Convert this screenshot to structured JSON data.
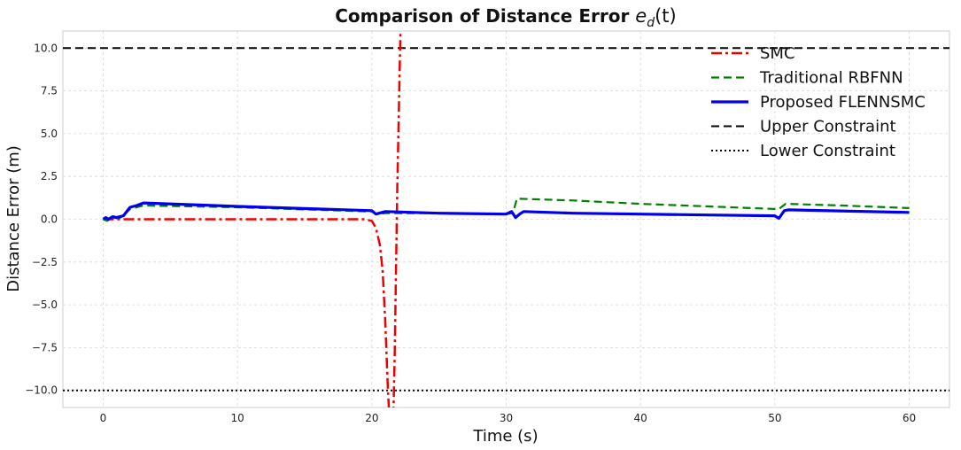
{
  "chart_data": {
    "type": "line",
    "title": "Comparison of Distance Error e_d(t)",
    "title_main": "Comparison of Distance Error ",
    "title_symbol": "e",
    "title_subscript": "d",
    "title_arg": "(t)",
    "xlabel": "Time (s)",
    "ylabel": "Distance Error (m)",
    "xlim": [
      -3,
      63
    ],
    "ylim": [
      -11,
      11
    ],
    "xticks": [
      0,
      10,
      20,
      30,
      40,
      50,
      60
    ],
    "xtick_labels": [
      "0",
      "10",
      "20",
      "30",
      "40",
      "50",
      "60"
    ],
    "yticks": [
      -10,
      -7.5,
      -5,
      -2.5,
      0,
      2.5,
      5,
      7.5,
      10
    ],
    "ytick_labels": [
      "−10.0",
      "−7.5",
      "−5.0",
      "−2.5",
      "0.0",
      "2.5",
      "5.0",
      "7.5",
      "10.0"
    ],
    "grid": true,
    "legend_position": "top-right",
    "series": [
      {
        "name": "SMC",
        "color": "#ee0000",
        "style": "dashdot",
        "width": 2.5,
        "points": [
          [
            0,
            0
          ],
          [
            5,
            0
          ],
          [
            10,
            0
          ],
          [
            15,
            0
          ],
          [
            19.5,
            0
          ],
          [
            20,
            -0.1
          ],
          [
            20.3,
            -0.5
          ],
          [
            20.6,
            -1.5
          ],
          [
            20.8,
            -3
          ],
          [
            21,
            -6
          ],
          [
            21.2,
            -10
          ],
          [
            21.3,
            -11.5
          ],
          [
            21.6,
            -11.5
          ],
          [
            21.7,
            -8
          ],
          [
            21.8,
            -3
          ],
          [
            21.9,
            2
          ],
          [
            22.0,
            6
          ],
          [
            22.1,
            10
          ],
          [
            22.15,
            11.5
          ]
        ]
      },
      {
        "name": "Traditional RBFNN",
        "color": "#008000",
        "style": "dashed",
        "width": 2.2,
        "points": [
          [
            0,
            0
          ],
          [
            0.3,
            -0.1
          ],
          [
            0.6,
            0.1
          ],
          [
            1.2,
            0.05
          ],
          [
            1.6,
            0.3
          ],
          [
            2,
            0.6
          ],
          [
            3,
            0.8
          ],
          [
            10,
            0.7
          ],
          [
            20,
            0.45
          ],
          [
            20.3,
            0.3
          ],
          [
            21,
            0.35
          ],
          [
            25,
            0.35
          ],
          [
            30,
            0.3
          ],
          [
            30.5,
            0.35
          ],
          [
            30.8,
            1.2
          ],
          [
            35,
            1.1
          ],
          [
            40,
            0.9
          ],
          [
            45,
            0.75
          ],
          [
            50,
            0.6
          ],
          [
            50.3,
            0.6
          ],
          [
            50.8,
            0.9
          ],
          [
            55,
            0.8
          ],
          [
            60,
            0.65
          ]
        ]
      },
      {
        "name": "Proposed FLENNSMC",
        "color": "#0000ee",
        "style": "solid",
        "width": 3.2,
        "points": [
          [
            0,
            0
          ],
          [
            0.2,
            0.1
          ],
          [
            0.4,
            0.0
          ],
          [
            0.7,
            0.15
          ],
          [
            1.0,
            0.1
          ],
          [
            1.5,
            0.2
          ],
          [
            2,
            0.7
          ],
          [
            2.5,
            0.8
          ],
          [
            3,
            0.95
          ],
          [
            10,
            0.75
          ],
          [
            20,
            0.5
          ],
          [
            20.3,
            0.3
          ],
          [
            21,
            0.45
          ],
          [
            25,
            0.35
          ],
          [
            30,
            0.3
          ],
          [
            30.4,
            0.45
          ],
          [
            30.7,
            0.1
          ],
          [
            31,
            0.3
          ],
          [
            31.3,
            0.45
          ],
          [
            35,
            0.35
          ],
          [
            40,
            0.3
          ],
          [
            45,
            0.25
          ],
          [
            50,
            0.2
          ],
          [
            50.3,
            0.05
          ],
          [
            50.7,
            0.5
          ],
          [
            51,
            0.55
          ],
          [
            60,
            0.4
          ]
        ]
      },
      {
        "name": "Upper Constraint",
        "color": "#000000",
        "style": "dashed",
        "width": 2,
        "points": [
          [
            -3,
            10
          ],
          [
            63,
            10
          ]
        ]
      },
      {
        "name": "Lower Constraint",
        "color": "#000000",
        "style": "dotted",
        "width": 2,
        "points": [
          [
            -3,
            -10
          ],
          [
            63,
            -10
          ]
        ]
      }
    ]
  }
}
